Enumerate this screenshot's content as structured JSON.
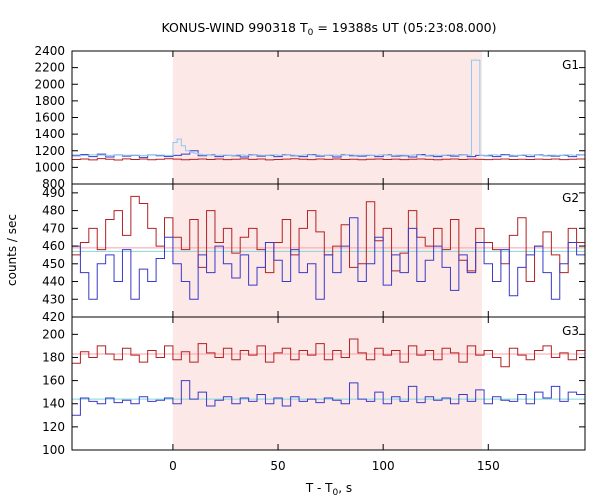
{
  "chart_data": {
    "type": "line",
    "title_prefix": "KONUS-WIND 990318 T",
    "title_sub": "0",
    "title_suffix": " = 19388s UT (05:23:08.000)",
    "xlabel_prefix": "T - T",
    "xlabel_sub": "0",
    "xlabel_suffix": ", s",
    "ylabel": "counts / sec",
    "xlim": [
      -48,
      196
    ],
    "xticks": [
      0,
      50,
      100,
      150
    ],
    "highlight_interval": [
      0,
      147
    ],
    "colors": {
      "red": "#b22222",
      "blue": "#3a3ac8",
      "light_blue": "#8ec8f0",
      "pink": "#ff9ea8",
      "cyan": "#7fd8d8",
      "highlight": "#fde8e8"
    },
    "panels": [
      {
        "name": "G1",
        "ylim": [
          800,
          2400
        ],
        "yticks": [
          800,
          1000,
          1200,
          1400,
          1600,
          1800,
          2000,
          2200,
          2400
        ],
        "series": [
          {
            "color_key": "red",
            "x_start": -48,
            "bin": 4,
            "values": [
              1095,
              1100,
              1090,
              1105,
              1098,
              1088,
              1102,
              1095,
              1100,
              1092,
              1097,
              1103,
              1099,
              1091,
              1096,
              1101,
              1094,
              1100,
              1093,
              1098,
              1102,
              1096,
              1100,
              1090,
              1095,
              1099,
              1104,
              1097,
              1093,
              1100,
              1096,
              1101,
              1094,
              1098,
              1092,
              1097,
              1100,
              1095,
              1099,
              1093,
              1097,
              1101,
              1096,
              1092,
              1098,
              1100,
              1094,
              1099,
              1096,
              1093,
              1097,
              1100,
              1095,
              1098,
              1094,
              1099,
              1096,
              1101,
              1093,
              1097,
              1100
            ]
          },
          {
            "color_key": "blue",
            "x_start": -48,
            "bin": 4,
            "values": [
              1140,
              1155,
              1130,
              1160,
              1125,
              1150,
              1135,
              1145,
              1120,
              1150,
              1140,
              1130,
              1145,
              1160,
              1200,
              1140,
              1150,
              1130,
              1145,
              1140,
              1125,
              1150,
              1135,
              1145,
              1130,
              1150,
              1140,
              1130,
              1155,
              1135,
              1145,
              1125,
              1150,
              1140,
              1135,
              1145,
              1130,
              1150,
              1135,
              1140,
              1125,
              1155,
              1140,
              1130,
              1145,
              1135,
              1150,
              1130,
              1145,
              1140,
              1130,
              1155,
              1135,
              1145,
              1130,
              1150,
              1140,
              1135,
              1145,
              1130,
              1150
            ]
          },
          {
            "color_key": "light_blue",
            "x_start": -48,
            "bin": 2,
            "values": [
              1150,
              1150,
              1145,
              1145,
              1150,
              1150,
              1148,
              1148,
              1145,
              1145,
              1150,
              1150,
              1146,
              1146,
              1148,
              1148,
              1145,
              1145,
              1150,
              1150,
              1147,
              1147,
              1145,
              1145,
              1300,
              1340,
              1260,
              1200,
              1180,
              1170,
              1160,
              1150,
              1150,
              1145,
              1145,
              1148,
              1148,
              1145,
              1145,
              1150,
              1150,
              1145,
              1145,
              1148,
              1148,
              1146,
              1146,
              1150,
              1150,
              1145,
              1145,
              1148,
              1148,
              1145,
              1145,
              1150,
              1150,
              1147,
              1147,
              1145,
              1145,
              1148,
              1148,
              1145,
              1145,
              1150,
              1150,
              1146,
              1146,
              1148,
              1148,
              1145,
              1145,
              1150,
              1150,
              1145,
              1145,
              1148,
              1148,
              1146,
              1146,
              1150,
              1150,
              1145,
              1145,
              1148,
              1148,
              1145,
              1145,
              1150,
              1150,
              1146,
              1146,
              1148,
              1148,
              2290,
              2290,
              1145,
              1145,
              1150,
              1150,
              1146,
              1146,
              1148,
              1148,
              1145,
              1145,
              1150,
              1150,
              1147,
              1147,
              1145,
              1145,
              1148,
              1148,
              1145,
              1145,
              1150,
              1150,
              1146,
              1146,
              1148
            ]
          }
        ]
      },
      {
        "name": "G2",
        "ylim": [
          420,
          495
        ],
        "yticks": [
          420,
          430,
          440,
          450,
          460,
          470,
          480,
          490
        ],
        "hlines": [
          {
            "color_key": "pink",
            "value": 459
          },
          {
            "color_key": "cyan",
            "value": 457
          }
        ],
        "series": [
          {
            "color_key": "red",
            "x_start": -48,
            "bin": 4,
            "values": [
              455,
              462,
              470,
              458,
              475,
              480,
              466,
              488,
              484,
              470,
              460,
              476,
              465,
              458,
              475,
              448,
              480,
              462,
              470,
              456,
              465,
              470,
              458,
              445,
              462,
              475,
              455,
              470,
              480,
              468,
              455,
              460,
              472,
              448,
              450,
              485,
              463,
              470,
              446,
              456,
              480,
              465,
              460,
              470,
              458,
              475,
              452,
              446,
              470,
              462,
              458,
              450,
              466,
              476,
              440,
              460,
              468,
              455,
              445,
              470,
              462
            ]
          },
          {
            "color_key": "blue",
            "x_start": -48,
            "bin": 4,
            "values": [
              460,
              445,
              430,
              450,
              455,
              440,
              458,
              430,
              447,
              440,
              453,
              465,
              450,
              440,
              430,
              455,
              445,
              460,
              450,
              442,
              455,
              438,
              448,
              462,
              452,
              440,
              458,
              445,
              450,
              430,
              455,
              445,
              460,
              476,
              440,
              450,
              465,
              438,
              455,
              445,
              470,
              440,
              452,
              460,
              448,
              435,
              455,
              445,
              462,
              450,
              440,
              458,
              432,
              448,
              455,
              460,
              445,
              430,
              450,
              462,
              455
            ]
          }
        ]
      },
      {
        "name": "G3",
        "ylim": [
          100,
          215
        ],
        "yticks": [
          100,
          120,
          140,
          160,
          180,
          200
        ],
        "hlines": [
          {
            "color_key": "pink",
            "value": 183
          },
          {
            "color_key": "cyan",
            "value": 144
          }
        ],
        "series": [
          {
            "color_key": "red",
            "x_start": -48,
            "bin": 4,
            "values": [
              175,
              185,
              180,
              190,
              183,
              178,
              188,
              182,
              176,
              186,
              180,
              190,
              178,
              185,
              176,
              192,
              184,
              180,
              188,
              178,
              186,
              182,
              190,
              176,
              184,
              188,
              178,
              186,
              182,
              192,
              178,
              186,
              180,
              196,
              184,
              178,
              188,
              182,
              186,
              176,
              190,
              182,
              186,
              178,
              188,
              184,
              176,
              190,
              182,
              186,
              180,
              172,
              188,
              182,
              178,
              186,
              190,
              180,
              184,
              178,
              186
            ]
          },
          {
            "color_key": "blue",
            "x_start": -48,
            "bin": 4,
            "values": [
              130,
              145,
              142,
              140,
              145,
              141,
              143,
              140,
              146,
              142,
              143,
              145,
              140,
              160,
              144,
              150,
              138,
              143,
              146,
              140,
              145,
              142,
              148,
              140,
              145,
              138,
              146,
              142,
              144,
              141,
              145,
              143,
              140,
              158,
              144,
              142,
              150,
              140,
              146,
              142,
              155,
              141,
              146,
              143,
              145,
              140,
              148,
              142,
              152,
              140,
              146,
              143,
              142,
              148,
              140,
              150,
              145,
              155,
              142,
              150,
              148
            ]
          }
        ]
      }
    ]
  }
}
